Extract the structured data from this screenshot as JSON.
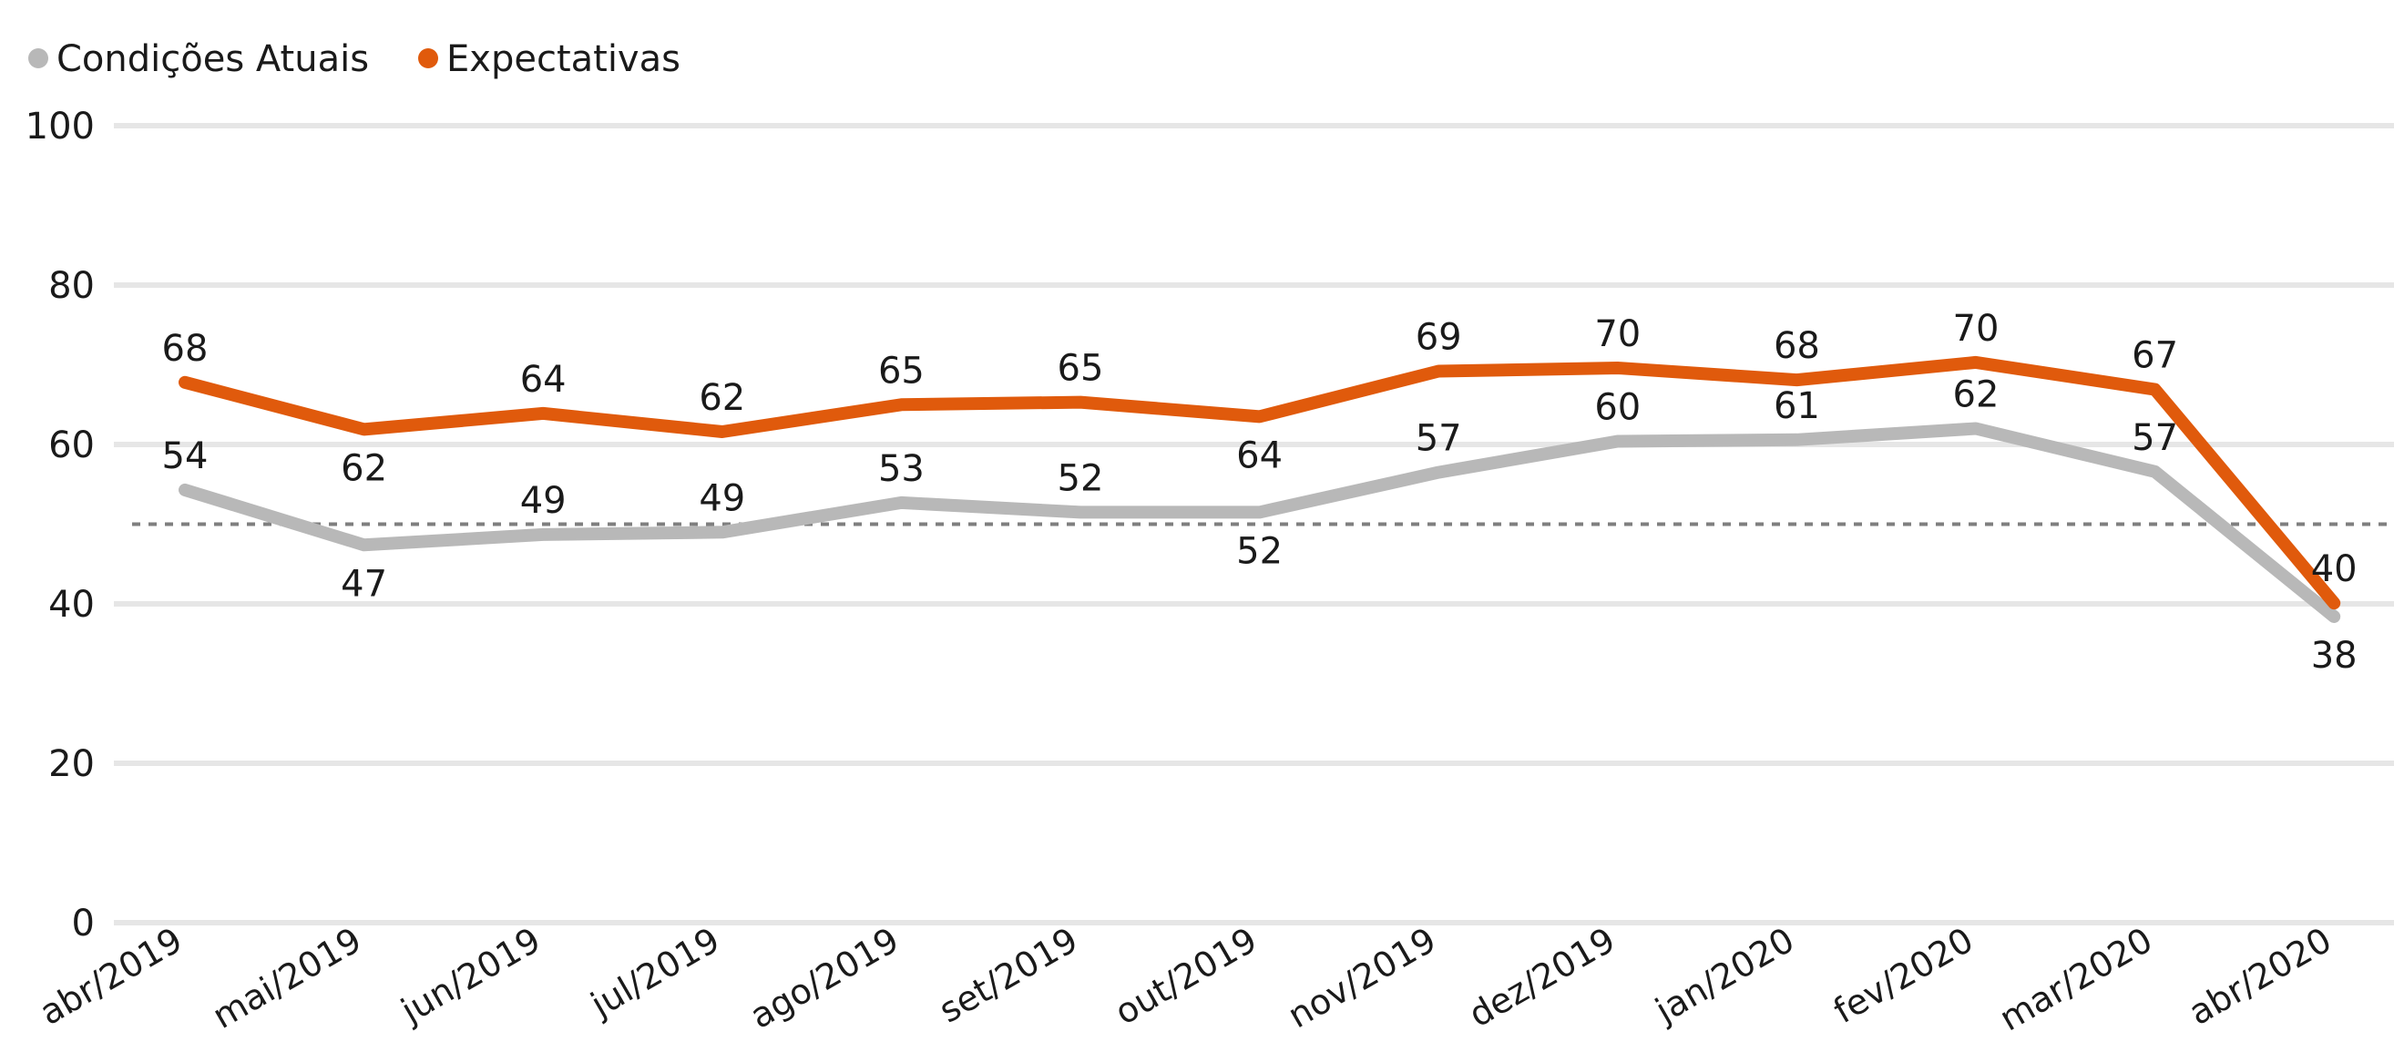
{
  "chart_data": {
    "type": "line",
    "title": "",
    "xlabel": "",
    "ylabel": "",
    "ylim": [
      0,
      100
    ],
    "yticks": [
      0,
      20,
      40,
      60,
      80,
      100
    ],
    "grid": true,
    "legend_position": "top-left",
    "reference_line": {
      "value": 50,
      "style": "dotted",
      "color": "#7f7f7f"
    },
    "categories": [
      "abr/2019",
      "mai/2019",
      "jun/2019",
      "jul/2019",
      "ago/2019",
      "set/2019",
      "out/2019",
      "nov/2019",
      "dez/2019",
      "jan/2020",
      "fev/2020",
      "mar/2020",
      "abr/2020"
    ],
    "series": [
      {
        "name": "Condições Atuais",
        "color": "#b8b8b8",
        "values": [
          54.3,
          47.4,
          48.7,
          49.0,
          52.7,
          51.5,
          51.5,
          56.5,
          60.4,
          60.6,
          62.0,
          56.6,
          38.4
        ],
        "labels": [
          "54",
          "47",
          "49",
          "49",
          "53",
          "52",
          "52",
          "57",
          "60",
          "61",
          "62",
          "57",
          "38"
        ],
        "label_positions": [
          "above",
          "below",
          "above",
          "above",
          "above",
          "above",
          "below",
          "above",
          "above",
          "above",
          "above",
          "above",
          "below"
        ]
      },
      {
        "name": "Expectativas",
        "color": "#e05a0c",
        "values": [
          67.8,
          61.9,
          63.9,
          61.6,
          65.0,
          65.3,
          63.5,
          69.2,
          69.6,
          68.1,
          70.3,
          66.9,
          40.1
        ],
        "labels": [
          "68",
          "62",
          "64",
          "62",
          "65",
          "65",
          "64",
          "69",
          "70",
          "68",
          "70",
          "67",
          "40"
        ],
        "label_positions": [
          "above",
          "below",
          "above",
          "above",
          "above",
          "above",
          "below",
          "above",
          "above",
          "above",
          "above",
          "above",
          "above"
        ]
      }
    ]
  }
}
